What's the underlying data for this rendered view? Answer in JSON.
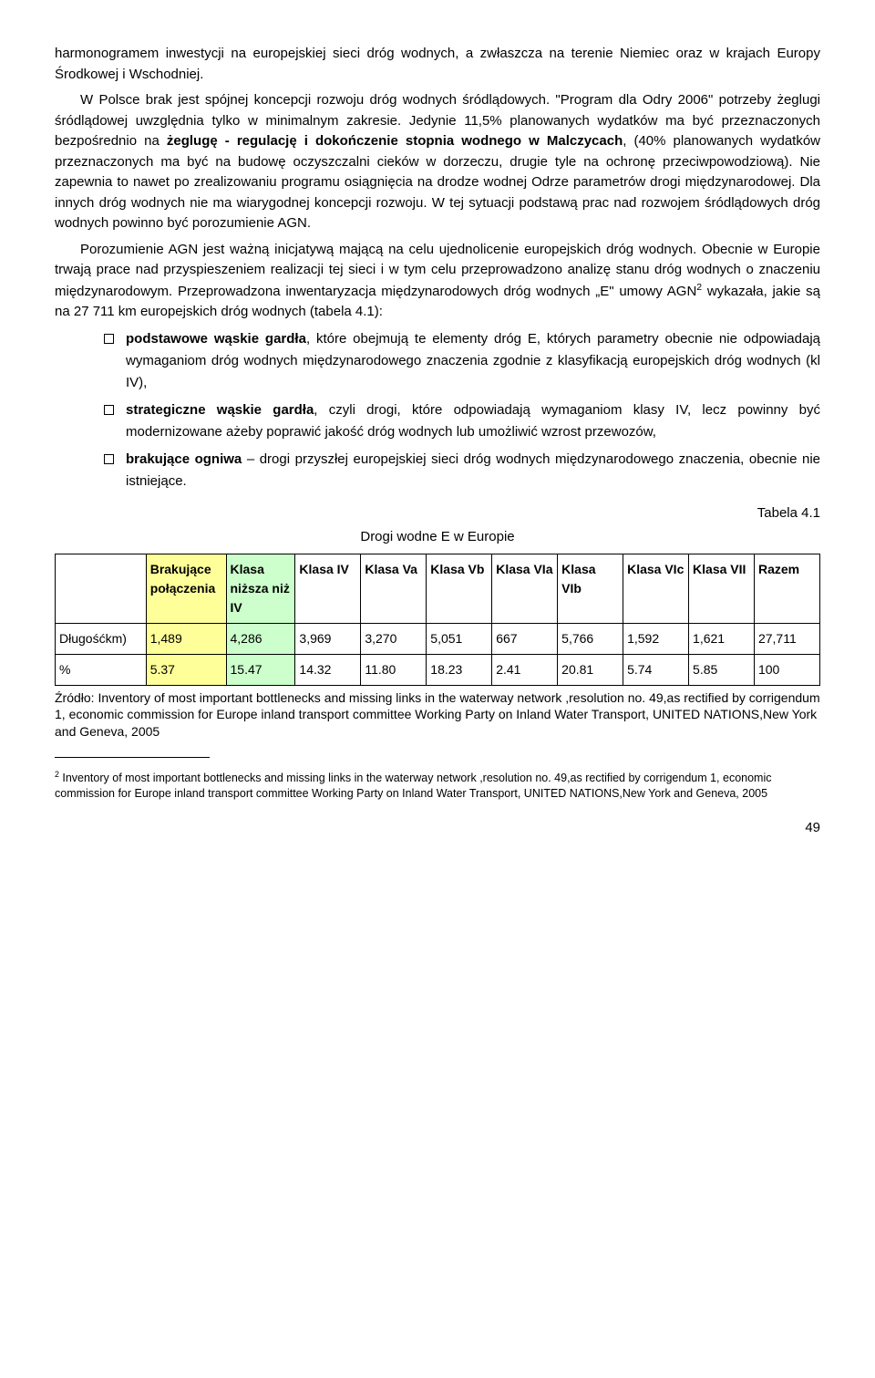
{
  "paragraphs": {
    "p1": "harmonogramem inwestycji na europejskiej sieci dróg wodnych, a zwłaszcza na terenie Niemiec oraz w krajach Europy Środkowej i Wschodniej.",
    "p2_a": "W Polsce brak jest spójnej koncepcji rozwoju dróg wodnych śródlądowych. \"Program dla Odry 2006\" potrzeby żeglugi śródlądowej uwzględnia tylko w minimalnym zakresie. Jedynie 11,5% planowanych wydatków ma być przeznaczonych bezpośrednio na ",
    "p2_bold": "żeglugę - regulację i dokończenie stopnia wodnego w Malczycach",
    "p2_b": ", (40% planowanych wydatków przeznaczonych ma być na budowę oczyszczalni cieków w dorzeczu, drugie tyle na ochronę przeciwpowodziową). Nie zapewnia to nawet po zrealizowaniu programu osiągnięcia na drodze wodnej Odrze parametrów drogi międzynarodowej. Dla innych dróg wodnych nie ma wiarygodnej koncepcji rozwoju. W tej sytuacji podstawą prac nad rozwojem śródlądowych dróg wodnych powinno być porozumienie AGN.",
    "p3_a": "Porozumienie AGN jest ważną inicjatywą mającą na celu ujednolicenie europejskich dróg wodnych. Obecnie w Europie trwają prace nad przyspieszeniem realizacji tej sieci i w tym celu przeprowadzono analizę stanu dróg wodnych o znaczeniu międzynarodowym. Przeprowadzona inwentaryzacja międzynarodowych dróg wodnych „E\" umowy AGN",
    "p3_b": " wykazała, jakie są  na  27 711 km europejskich dróg wodnych (tabela 4.1):"
  },
  "bullets": {
    "b1_a": "podstawowe wąskie gardła",
    "b1_b": ", które obejmują te elementy dróg E, których parametry obecnie nie odpowiadają wymaganiom dróg wodnych międzynarodowego znaczenia zgodnie  z klasyfikacją europejskich dróg wodnych (kl IV),",
    "b2_a": "strategiczne wąskie gardła",
    "b2_b": ", czyli drogi, które odpowiadają wymaganiom klasy IV, lecz powinny być modernizowane ażeby poprawić jakość dróg wodnych lub umożliwić wzrost przewozów,",
    "b3_a": "brakujące ogniwa",
    "b3_b": " – drogi przyszłej europejskiej sieci dróg wodnych międzynarodowego znaczenia, obecnie nie istniejące."
  },
  "table": {
    "label_title": "Tabela 4.1",
    "caption": "Drogi wodne E w Europie",
    "headers": [
      "",
      "Brakujące połączenia",
      "Klasa niższa niż IV",
      "Klasa IV",
      "Klasa Va",
      "Klasa Vb",
      "Klasa VIa",
      "Klasa VIb",
      "Klasa VIc",
      "Klasa VII",
      "Razem"
    ],
    "row1_label": "Długośćkm)",
    "row1": [
      "1,489",
      "4,286",
      "3,969",
      "3,270",
      "5,051",
      "667",
      "5,766",
      "1,592",
      "1,621",
      "27,711"
    ],
    "row2_label": "%",
    "row2": [
      "5.37",
      "15.47",
      "14.32",
      "11.80",
      "18.23",
      "2.41",
      "20.81",
      "5.74",
      "5.85",
      "100"
    ]
  },
  "source": "Źródło: Inventory of most important bottlenecks and missing links in the waterway network ,resolution no. 49,as rectified by corrigendum 1, economic commission for Europe inland transport committee Working Party on Inland Water Transport, UNITED NATIONS,New York and Geneva, 2005",
  "footnote_num": "2",
  "footnote": " Inventory of most important bottlenecks and missing links in the waterway network ,resolution no. 49,as rectified by corrigendum 1, economic commission for Europe inland transport committee Working Party on Inland Water Transport, UNITED NATIONS,New York and Geneva, 2005",
  "page_num": "49",
  "colors": {
    "yellow": "#ffff99",
    "green": "#ccffcc",
    "bg": "#ffffff",
    "text": "#000000"
  }
}
